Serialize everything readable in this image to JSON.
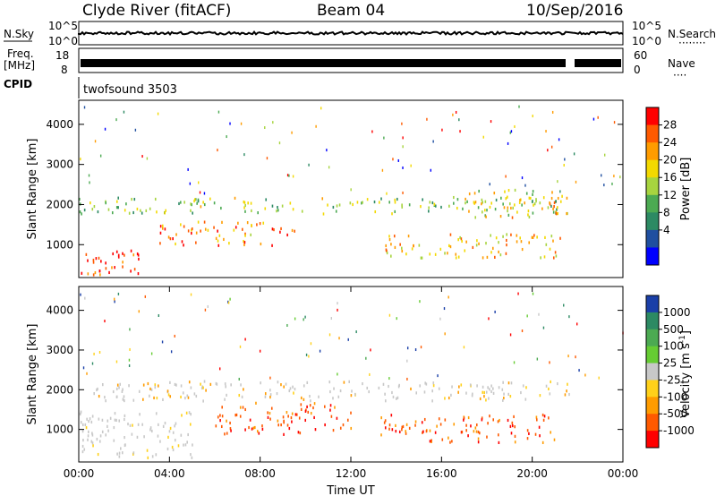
{
  "header": {
    "station": "Clyde River (fitACF)",
    "beam": "Beam 04",
    "date": "10/Sep/2016"
  },
  "nsky_panel": {
    "left_label": "N.Sky",
    "left_ticks": [
      "10^5",
      "10^0"
    ],
    "right_label": "N.Search",
    "right_dots": "········",
    "right_ticks": [
      "10^5",
      "10^0"
    ]
  },
  "freq_panel": {
    "left_label_line1": "Freq.",
    "left_label_line2": "[MHz]",
    "left_ticks": [
      "18",
      "8"
    ],
    "right_label": "Nave",
    "right_dots": "····",
    "right_ticks": [
      "60",
      "0"
    ]
  },
  "cpid_panel": {
    "label": "CPID",
    "value": "twofsound 3503"
  },
  "chart_data": [
    {
      "type": "heatmap",
      "name": "power",
      "ylabel": "Slant Range [km]",
      "yticks": [
        "4000",
        "3000",
        "2000",
        "1000"
      ],
      "ytick_values": [
        4000,
        3000,
        2000,
        1000
      ],
      "ylim": [
        180,
        4600
      ],
      "xlim_hours": [
        0,
        24
      ],
      "colorbar_label": "Power [dB]",
      "colorbar_ticks": [
        "28",
        "24",
        "20",
        "16",
        "12",
        "8",
        "4"
      ],
      "colorbar_colors": [
        "#ff0000",
        "#ff5a00",
        "#ff9c00",
        "#f3d900",
        "#a7d43f",
        "#4caa52",
        "#2c8a63",
        "#1f4fa0",
        "#0000ff"
      ],
      "features": [
        {
          "t0": 0.0,
          "t1": 22.0,
          "r0": 1800,
          "r1": 2200,
          "level": 0.45
        },
        {
          "t0": 0.0,
          "t1": 3.0,
          "r0": 200,
          "r1": 900,
          "level": 0.95
        },
        {
          "t0": 3.5,
          "t1": 9.5,
          "r0": 1000,
          "r1": 1600,
          "level": 0.8
        },
        {
          "t0": 13.5,
          "t1": 21.5,
          "r0": 700,
          "r1": 1300,
          "level": 0.7
        },
        {
          "t0": 16.5,
          "t1": 21.8,
          "r0": 1700,
          "r1": 2400,
          "level": 0.6
        }
      ]
    },
    {
      "type": "heatmap",
      "name": "velocity",
      "ylabel": "Slant Range [km]",
      "yticks": [
        "4000",
        "3000",
        "2000",
        "1000"
      ],
      "ytick_values": [
        4000,
        3000,
        2000,
        1000
      ],
      "ylim": [
        180,
        4600
      ],
      "xlim_hours": [
        0,
        24
      ],
      "xticks": [
        "00:00",
        "04:00",
        "08:00",
        "12:00",
        "16:00",
        "20:00",
        "00:00"
      ],
      "xtick_values": [
        0,
        4,
        8,
        12,
        16,
        20,
        24
      ],
      "xlabel": "Time UT",
      "colorbar_label": "Velocity  [m s",
      "colorbar_label_sup": "-1",
      "colorbar_ticks": [
        "1000",
        "500",
        "100",
        "25",
        "-25",
        "-100",
        "-500",
        "-1000"
      ],
      "colorbar_colors": [
        "#1a3fa8",
        "#2c8a63",
        "#4caa52",
        "#66cc33",
        "#c8c8c8",
        "#ffd11a",
        "#ff9c00",
        "#ff5a00",
        "#ff0000"
      ],
      "features": [
        {
          "t0": 0.0,
          "t1": 22.0,
          "r0": 1750,
          "r1": 2250,
          "level": 0.5
        },
        {
          "t0": 6.0,
          "t1": 12.0,
          "r0": 900,
          "r1": 1700,
          "level": 0.8
        },
        {
          "t0": 13.0,
          "t1": 21.0,
          "r0": 700,
          "r1": 1400,
          "level": 0.8
        },
        {
          "t0": 0.0,
          "t1": 5.0,
          "r0": 300,
          "r1": 1500,
          "level": 0.3
        }
      ]
    }
  ]
}
